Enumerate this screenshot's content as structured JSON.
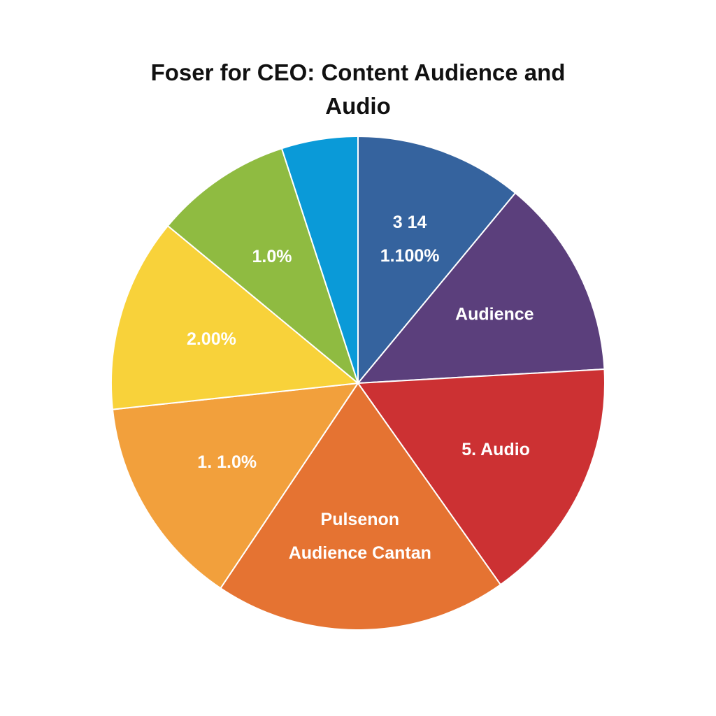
{
  "chart_data": {
    "type": "pie",
    "title_lines": [
      "Foser for CEO: Content Audience and",
      "Audio"
    ],
    "slices": [
      {
        "value": 11.0,
        "color": "#35639e",
        "label_lines": [
          "3 14",
          "1.100%"
        ]
      },
      {
        "value": 13.1,
        "color": "#5b3f7c",
        "label_lines": [
          "Audience"
        ]
      },
      {
        "value": 16.1,
        "color": "#cc3133",
        "label_lines": [
          "5. Audio"
        ]
      },
      {
        "value": 19.2,
        "color": "#e57332",
        "label_lines": [
          "Pulsenon",
          "Audience Cantan"
        ]
      },
      {
        "value": 13.9,
        "color": "#f2a03c",
        "label_lines": [
          "1. 1.0%"
        ]
      },
      {
        "value": 12.7,
        "color": "#f8d23a",
        "label_lines": [
          "2.00%"
        ]
      },
      {
        "value": 9.0,
        "color": "#8fbb41",
        "label_lines": [
          "1.0%"
        ]
      },
      {
        "value": 5.0,
        "color": "#0a9ad8",
        "label_lines": []
      }
    ],
    "legend": "none",
    "grid": false
  }
}
